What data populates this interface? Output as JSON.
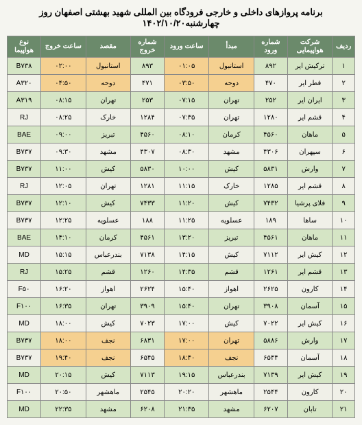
{
  "title": "برنامه پروازهای داخلی و خارجی فرودگاه بین المللی شهید بهشتی اصفهان روز چهارشنبه۱۴۰۲/۱۰/۲۰",
  "headers": {
    "rowno": "ردیف",
    "airline": "شرکت هواپیمایی",
    "flight_in": "شماره ورود",
    "origin": "مبدأ",
    "arrive": "ساعت ورود",
    "flight_out": "شماره خروج",
    "dest": "مقصد",
    "depart": "ساعت خروج",
    "aircraft": "نوع هواپیما"
  },
  "rows": [
    {
      "n": "۱",
      "airline": "ترکیش ایر",
      "fin": "۸۹۲",
      "orig": "استانبول",
      "arr": "۰۱:۰۵",
      "fout": "۸۹۳",
      "dest": "استانبول",
      "dep": "۰۲:۰۰",
      "ac": "B۷۳۸",
      "hl": true
    },
    {
      "n": "۲",
      "airline": "قطر ایر",
      "fin": "۴۷۰",
      "orig": "دوحه",
      "arr": "۰۳:۵۰",
      "fout": "۴۷۱",
      "dest": "دوحه",
      "dep": "۰۴:۵۰",
      "ac": "A۳۲۰",
      "hl": true
    },
    {
      "n": "۳",
      "airline": "ایران ایر",
      "fin": "۲۵۲",
      "orig": "تهران",
      "arr": "۰۷:۱۵",
      "fout": "۲۵۳",
      "dest": "تهران",
      "dep": "۰۸:۱۵",
      "ac": "A۳۱۹",
      "hl": false
    },
    {
      "n": "۴",
      "airline": "قشم ایر",
      "fin": "۱۲۸۰",
      "orig": "تهران",
      "arr": "۰۷:۳۵",
      "fout": "۱۲۸۴",
      "dest": "خارک",
      "dep": "۰۸:۲۵",
      "ac": "RJ",
      "hl": false
    },
    {
      "n": "۵",
      "airline": "ماهان",
      "fin": "۴۵۶۰",
      "orig": "کرمان",
      "arr": "۰۸:۱۰",
      "fout": "۴۵۶۰",
      "dest": "تبریز",
      "dep": "۰۹:۰۰",
      "ac": "BAE",
      "hl": false
    },
    {
      "n": "۶",
      "airline": "سپهران",
      "fin": "۴۳۰۶",
      "orig": "مشهد",
      "arr": "۰۸:۳۰",
      "fout": "۴۳۰۷",
      "dest": "مشهد",
      "dep": "۰۹:۳۰",
      "ac": "B۷۳۷",
      "hl": false
    },
    {
      "n": "۷",
      "airline": "وارش",
      "fin": "۵۸۳۱",
      "orig": "کیش",
      "arr": "۱۰:۰۰",
      "fout": "۵۸۳۰",
      "dest": "کیش",
      "dep": "۱۱:۰۰",
      "ac": "B۷۳۷",
      "hl": false
    },
    {
      "n": "۸",
      "airline": "قشم ایر",
      "fin": "۱۲۸۵",
      "orig": "خارک",
      "arr": "۱۱:۱۵",
      "fout": "۱۲۸۱",
      "dest": "تهران",
      "dep": "۱۲:۰۵",
      "ac": "RJ",
      "hl": false
    },
    {
      "n": "۹",
      "airline": "فلای پرشیا",
      "fin": "۷۴۳۲",
      "orig": "کیش",
      "arr": "۱۱:۲۰",
      "fout": "۷۴۳۳",
      "dest": "کیش",
      "dep": "۱۲:۱۰",
      "ac": "B۷۳۷",
      "hl": false
    },
    {
      "n": "۱۰",
      "airline": "ساها",
      "fin": "۱۸۹",
      "orig": "عسلویه",
      "arr": "۱۱:۲۵",
      "fout": "۱۸۸",
      "dest": "عسلویه",
      "dep": "۱۲:۲۵",
      "ac": "B۷۳۷",
      "hl": false
    },
    {
      "n": "۱۱",
      "airline": "ماهان",
      "fin": "۴۵۶۱",
      "orig": "تبریز",
      "arr": "۱۳:۲۰",
      "fout": "۴۵۶۱",
      "dest": "کرمان",
      "dep": "۱۴:۱۰",
      "ac": "BAE",
      "hl": false
    },
    {
      "n": "۱۲",
      "airline": "کیش ایر",
      "fin": "۷۱۱۲",
      "orig": "کیش",
      "arr": "۱۴:۱۵",
      "fout": "۷۱۳۸",
      "dest": "بندرعباس",
      "dep": "۱۵:۱۵",
      "ac": "MD",
      "hl": false
    },
    {
      "n": "۱۳",
      "airline": "قشم ایر",
      "fin": "۱۲۶۱",
      "orig": "قشم",
      "arr": "۱۴:۳۵",
      "fout": "۱۲۶۰",
      "dest": "قشم",
      "dep": "۱۵:۲۵",
      "ac": "RJ",
      "hl": false
    },
    {
      "n": "۱۴",
      "airline": "کارون",
      "fin": "۲۶۲۵",
      "orig": "اهواز",
      "arr": "۱۵:۴۰",
      "fout": "۲۶۲۴",
      "dest": "اهواز",
      "dep": "۱۶:۲۰",
      "ac": "F۵۰",
      "hl": false
    },
    {
      "n": "۱۵",
      "airline": "آسمان",
      "fin": "۳۹۰۸",
      "orig": "تهران",
      "arr": "۱۵:۴۰",
      "fout": "۳۹۰۹",
      "dest": "تهران",
      "dep": "۱۶:۳۵",
      "ac": "F۱۰۰",
      "hl": false
    },
    {
      "n": "۱۶",
      "airline": "کیش ایر",
      "fin": "۷۰۲۲",
      "orig": "کیش",
      "arr": "۱۷:۰۰",
      "fout": "۷۰۲۳",
      "dest": "کیش",
      "dep": "۱۸:۰۰",
      "ac": "MD",
      "hl": false
    },
    {
      "n": "۱۷",
      "airline": "وارش",
      "fin": "۵۸۸۶",
      "orig": "تهران",
      "arr": "۱۷:۰۰",
      "fout": "۶۸۳۱",
      "dest": "نجف",
      "dep": "۱۸:۰۰",
      "ac": "B۷۳۷",
      "hl": true
    },
    {
      "n": "۱۸",
      "airline": "آسمان",
      "fin": "۶۵۴۴",
      "orig": "نجف",
      "arr": "۱۸:۴۰",
      "fout": "۶۵۴۵",
      "dest": "نجف",
      "dep": "۱۹:۴۰",
      "ac": "B۷۳۷",
      "hl": true
    },
    {
      "n": "۱۹",
      "airline": "کیش ایر",
      "fin": "۷۱۳۹",
      "orig": "بندرعباس",
      "arr": "۱۹:۱۵",
      "fout": "۷۱۱۳",
      "dest": "کیش",
      "dep": "۲۰:۱۵",
      "ac": "MD",
      "hl": false
    },
    {
      "n": "۲۰",
      "airline": "کارون",
      "fin": "۲۵۴۴",
      "orig": "ماهشهر",
      "arr": "۲۰:۲۰",
      "fout": "۲۵۴۵",
      "dest": "ماهشهر",
      "dep": "۲۰:۵۰",
      "ac": "F۱۰۰",
      "hl": false
    },
    {
      "n": "۲۱",
      "airline": "تابان",
      "fin": "۶۲۰۷",
      "orig": "مشهد",
      "arr": "۲۱:۳۵",
      "fout": "۶۲۰۸",
      "dest": "مشهد",
      "dep": "۲۲:۳۵",
      "ac": "MD",
      "hl": false
    }
  ]
}
